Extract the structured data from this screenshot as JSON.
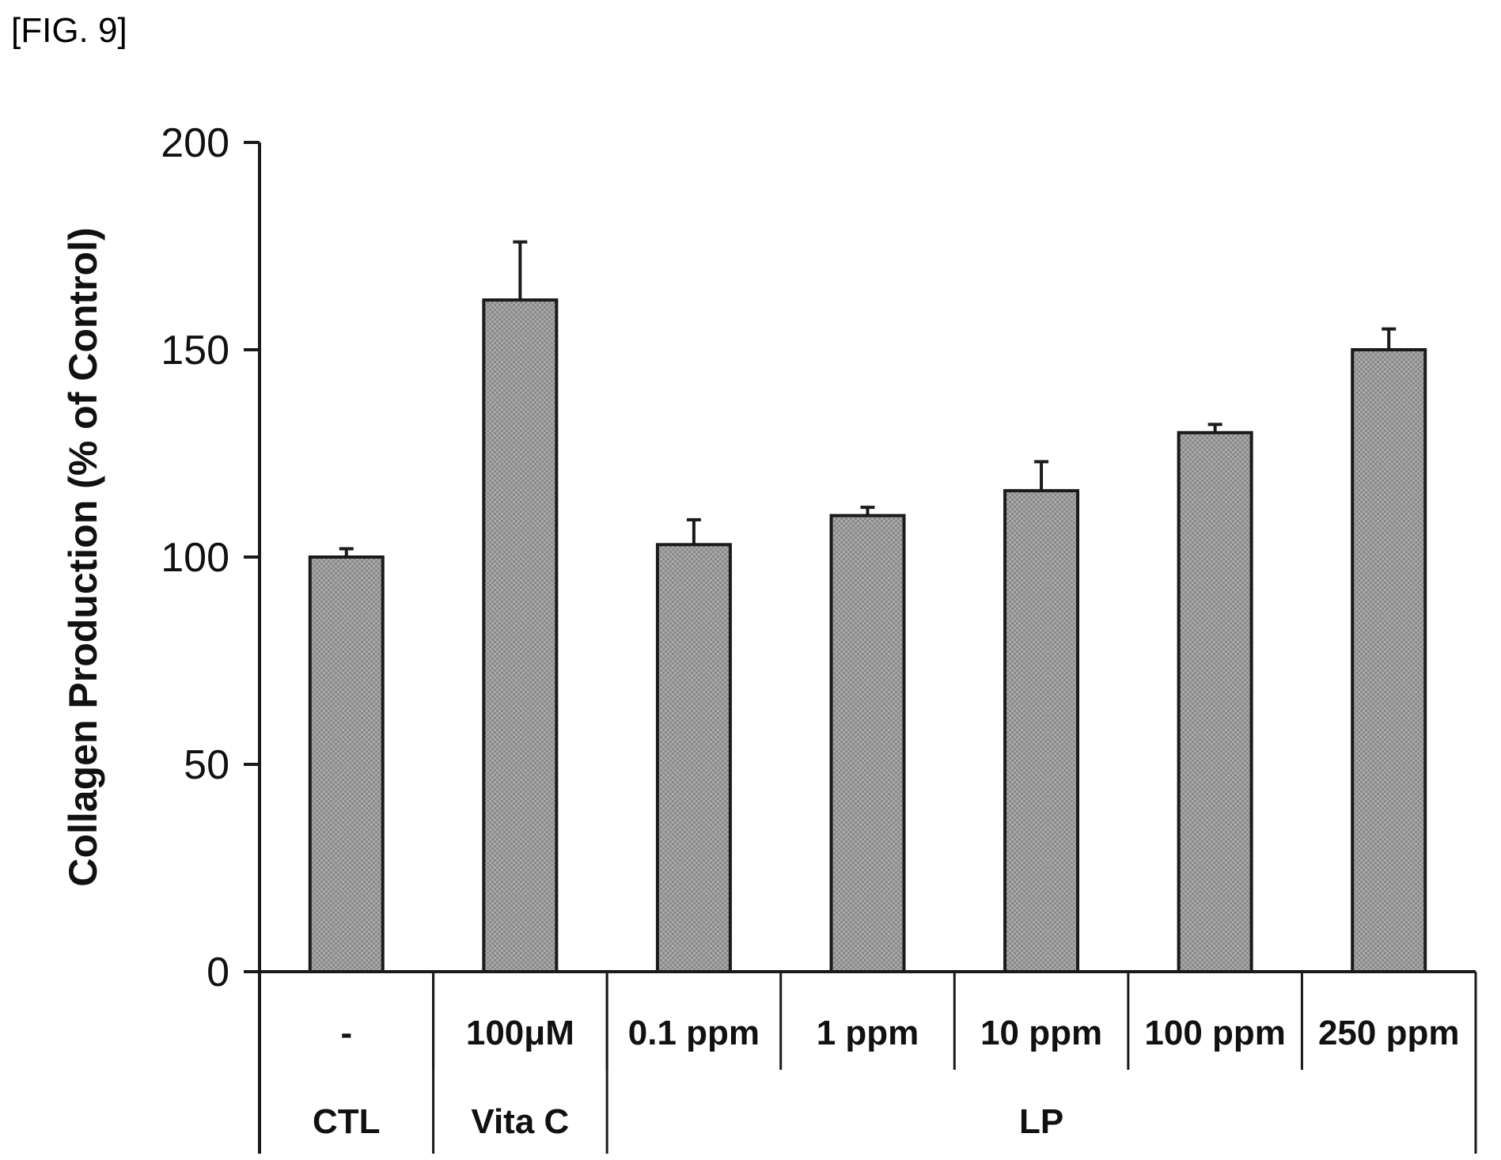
{
  "figure_label": "[FIG. 9]",
  "colors": {
    "bar_fill": "#9a9a9a",
    "bar_edge": "#1a1a1a",
    "axis": "#1a1a1a"
  },
  "chart_data": {
    "type": "bar",
    "ylabel": "Collagen Production (% of Control)",
    "ylim": [
      0,
      200
    ],
    "yticks": [
      0,
      50,
      100,
      150,
      200
    ],
    "categories": [
      "-",
      "100μM",
      "0.1 ppm",
      "1 ppm",
      "10 ppm",
      "100 ppm",
      "250 ppm"
    ],
    "values": [
      100,
      162,
      103,
      110,
      116,
      130,
      150
    ],
    "error": [
      2,
      14,
      6,
      2,
      7,
      2,
      5
    ],
    "groups": [
      {
        "label": "CTL",
        "span": [
          0,
          0
        ]
      },
      {
        "label": "Vita C",
        "span": [
          1,
          1
        ]
      },
      {
        "label": "LP",
        "span": [
          2,
          6
        ]
      }
    ]
  }
}
